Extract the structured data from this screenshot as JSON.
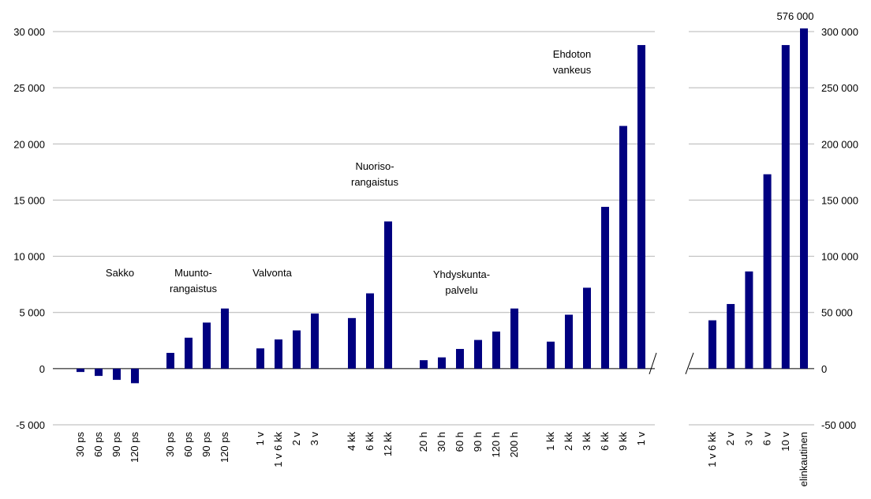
{
  "chart_data": {
    "type": "bar",
    "grid": true,
    "legend": "none",
    "bar_color": "#000080",
    "panels": [
      {
        "axis": "left",
        "ylim": [
          -5000,
          30000
        ],
        "y_ticks": [
          -5000,
          0,
          5000,
          10000,
          15000,
          20000,
          25000,
          30000
        ],
        "y_tick_labels": [
          "-5 000",
          "0",
          "5 000",
          "10 000",
          "15 000",
          "20 000",
          "25 000",
          "30 000"
        ],
        "groups": [
          {
            "label": [
              "Sakko"
            ],
            "categories": [
              "30 ps",
              "60 ps",
              "90 ps",
              "120 ps"
            ],
            "values": [
              -300,
              -650,
              -1000,
              -1300
            ]
          },
          {
            "label": [
              "Muunto-",
              "rangaistus"
            ],
            "categories": [
              "30 ps",
              "60 ps",
              "90 ps",
              "120 ps"
            ],
            "values": [
              1400,
              2750,
              4100,
              5350
            ]
          },
          {
            "label": [
              "Valvonta"
            ],
            "categories": [
              "1 v",
              "1 v 6 kk",
              "2 v",
              "3 v"
            ],
            "values": [
              1800,
              2600,
              3400,
              4900
            ]
          },
          {
            "label": [
              "Nuoriso-",
              "rangaistus"
            ],
            "categories": [
              "4 kk",
              "6 kk",
              "12 kk"
            ],
            "values": [
              4500,
              6700,
              13100
            ]
          },
          {
            "label": [
              "Yhdyskunta-",
              "palvelu"
            ],
            "categories": [
              "20 h",
              "30 h",
              "60 h",
              "90 h",
              "120 h",
              "200 h"
            ],
            "values": [
              750,
              1000,
              1750,
              2550,
              3300,
              5350
            ]
          },
          {
            "label": [
              "Ehdoton",
              "vankeus"
            ],
            "categories": [
              "1 kk",
              "2 kk",
              "3 kk",
              "6 kk",
              "9 kk",
              "1 v"
            ],
            "values": [
              2400,
              4800,
              7200,
              14400,
              21600,
              28800
            ]
          }
        ]
      },
      {
        "axis": "right",
        "ylim": [
          -50000,
          300000
        ],
        "y_ticks": [
          -50000,
          0,
          50000,
          100000,
          150000,
          200000,
          250000,
          300000
        ],
        "y_tick_labels": [
          "-50 000",
          "0",
          "50 000",
          "100 000",
          "150 000",
          "200 000",
          "250 000",
          "300 000"
        ],
        "categories": [
          "1 v 6 kk",
          "2 v",
          "3 v",
          "6 v",
          "10 v",
          "elinkautinen"
        ],
        "values": [
          43000,
          57500,
          86500,
          173000,
          288000,
          576000
        ],
        "annotation": "576 000"
      }
    ]
  }
}
